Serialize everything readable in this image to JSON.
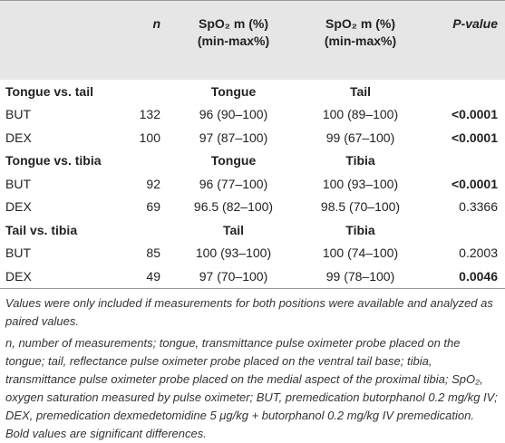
{
  "header": {
    "n": "n",
    "col1": {
      "line1": "SpO₂ m (%)",
      "line2": "(min-max%)"
    },
    "col2": {
      "line1": "SpO₂ m (%)",
      "line2": "(min-max%)"
    },
    "p": "P-value"
  },
  "groups": [
    {
      "title": "Tongue vs. tail",
      "site1": "Tongue",
      "site2": "Tail",
      "rows": [
        {
          "label": "BUT",
          "n": 132,
          "site1": "96 (90–100)",
          "site2": "100 (89–100)",
          "p": "<0.0001",
          "p_bold": true
        },
        {
          "label": "DEX",
          "n": 100,
          "site1": "97 (87–100)",
          "site2": "99 (67–100)",
          "p": "<0.0001",
          "p_bold": true
        }
      ]
    },
    {
      "title": "Tongue vs. tibia",
      "site1": "Tongue",
      "site2": "Tibia",
      "rows": [
        {
          "label": "BUT",
          "n": 92,
          "site1": "96 (77–100)",
          "site2": "100 (93–100)",
          "p": "<0.0001",
          "p_bold": true
        },
        {
          "label": "DEX",
          "n": 69,
          "site1": "96.5 (82–100)",
          "site2": "98.5 (70–100)",
          "p": "0.3366",
          "p_bold": false
        }
      ]
    },
    {
      "title": "Tail vs. tibia",
      "site1": "Tail",
      "site2": "Tibia",
      "rows": [
        {
          "label": "BUT",
          "n": 85,
          "site1": "100 (93–100)",
          "site2": "100 (74–100)",
          "p": "0.2003",
          "p_bold": false
        },
        {
          "label": "DEX",
          "n": 49,
          "site1": "97 (70–100)",
          "site2": "99 (78–100)",
          "p": "0.0046",
          "p_bold": true
        }
      ]
    }
  ],
  "footnotes": [
    "Values were only included if measurements for both positions were available and analyzed as paired values.",
    "n, number of measurements; tongue, transmittance pulse oximeter probe placed on the tongue; tail, reflectance pulse oximeter probe placed on the ventral tail base; tibia, transmittance pulse oximeter probe placed on the medial aspect of the proximal tibia; SpO₂, oxygen saturation measured by pulse oximeter; BUT, premedication butorphanol 0.2 mg/kg IV; DEX, premedication dexmedetomidine 5 μg/kg + butorphanol 0.2 mg/kg IV premedication. Bold values are significant differences."
  ]
}
